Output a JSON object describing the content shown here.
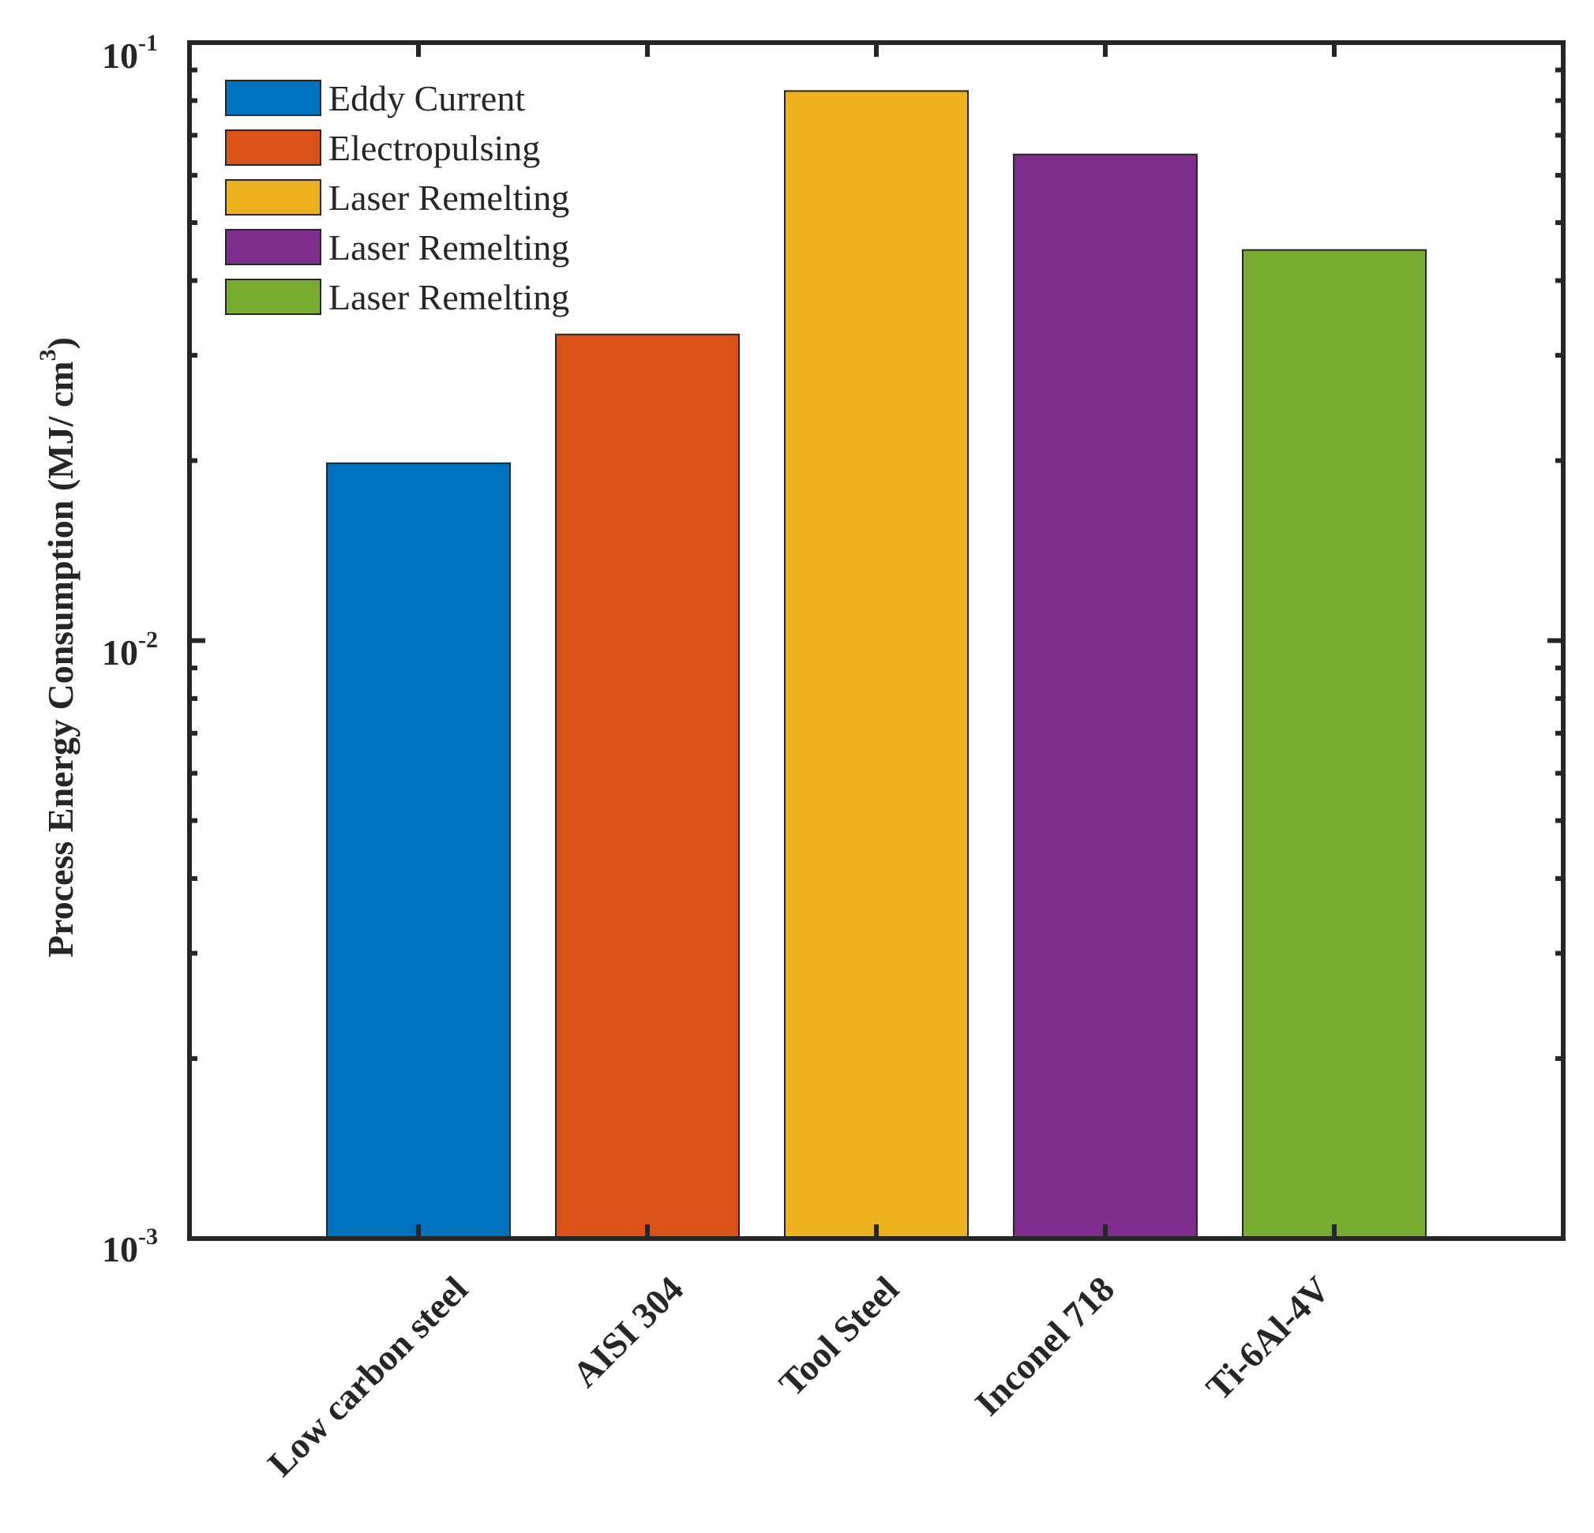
{
  "chart_data": {
    "type": "bar",
    "title": "",
    "xlabel": "",
    "ylabel": "Process Energy Consumption (MJ/ cm",
    "ylabel_superscript": "3",
    "ylabel_suffix": ")",
    "yscale": "log",
    "ylim": [
      0.001,
      0.1
    ],
    "yticks": [
      {
        "value": 0.1,
        "base": "10",
        "exp": "-1"
      },
      {
        "value": 0.01,
        "base": "10",
        "exp": "-2"
      },
      {
        "value": 0.001,
        "base": "10",
        "exp": "-3"
      }
    ],
    "xlim": [
      0,
      6
    ],
    "categories": [
      "Low carbon steel",
      "AISI 304",
      "Tool Steel",
      "Inconel 718",
      "Ti-6Al-4V"
    ],
    "values": [
      0.0198,
      0.0325,
      0.083,
      0.065,
      0.045
    ],
    "colors": [
      "#0072BD",
      "#D95319",
      "#EDB120",
      "#7E2F8E",
      "#77AC30"
    ],
    "legend": {
      "location": "top-left",
      "entries": [
        {
          "label": "Eddy Current",
          "color": "#0072BD"
        },
        {
          "label": "Electropulsing",
          "color": "#D95319"
        },
        {
          "label": "Laser Remelting",
          "color": "#EDB120"
        },
        {
          "label": "Laser Remelting",
          "color": "#7E2F8E"
        },
        {
          "label": "Laser Remelting",
          "color": "#77AC30"
        }
      ]
    },
    "grid": false
  }
}
